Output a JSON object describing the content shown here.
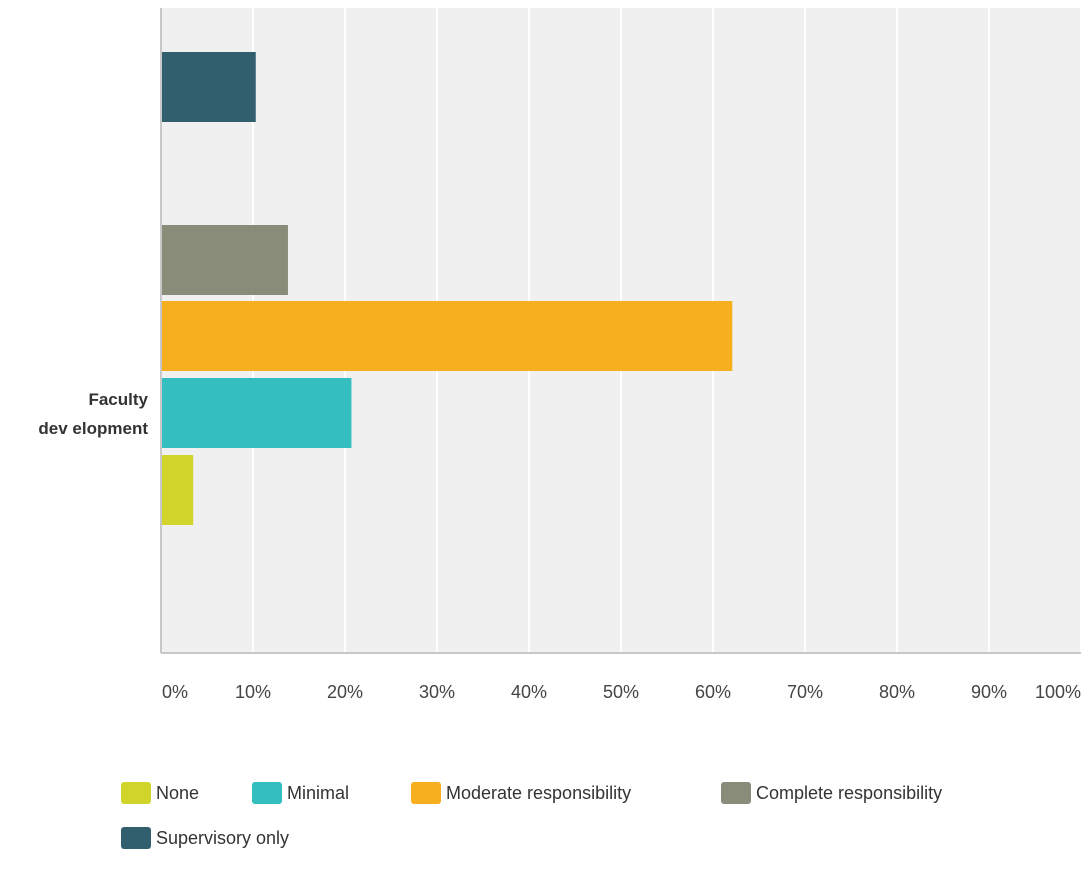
{
  "chart_data": {
    "type": "bar",
    "orientation": "horizontal",
    "categories": [
      "Faculty development"
    ],
    "category_label_lines": [
      "Faculty",
      "dev elopment"
    ],
    "series": [
      {
        "name": "None",
        "color": "#d0d42b",
        "values": [
          3.5
        ]
      },
      {
        "name": "Minimal",
        "color": "#34bec0",
        "values": [
          20.7
        ]
      },
      {
        "name": "Moderate responsibility",
        "color": "#f7ae1f",
        "values": [
          62.1
        ]
      },
      {
        "name": "Complete responsibility",
        "color": "#8a8c7a",
        "values": [
          13.8
        ]
      },
      {
        "name": "Supervisory only",
        "color": "#325f6e",
        "values": [
          10.3
        ]
      }
    ],
    "xlim": [
      0,
      100
    ],
    "x_ticks": [
      "0%",
      "10%",
      "20%",
      "30%",
      "40%",
      "50%",
      "60%",
      "70%",
      "80%",
      "90%",
      "100%"
    ],
    "grid": true,
    "legend_position": "bottom",
    "plot_background": "#f0f0f0",
    "title": "",
    "xlabel": "",
    "ylabel": ""
  }
}
